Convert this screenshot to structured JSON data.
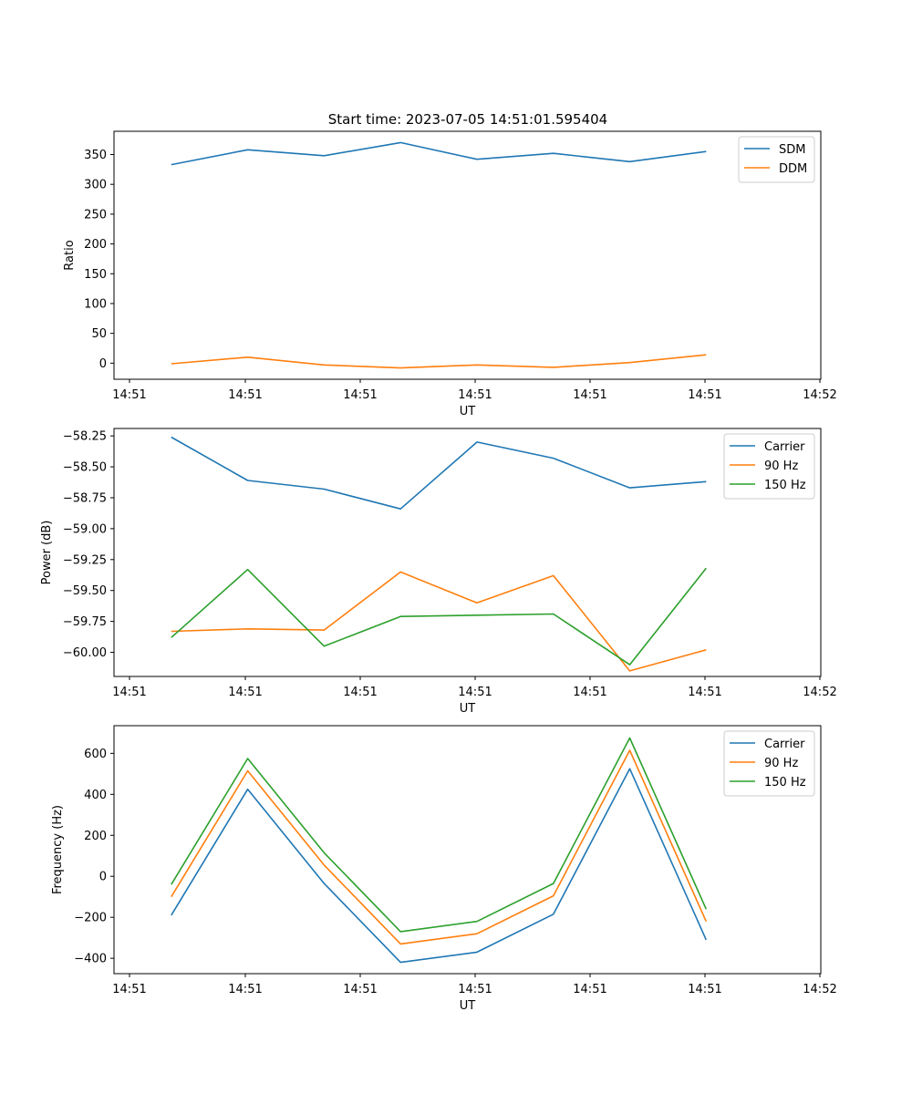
{
  "figure_title": "Start time: 2023-07-05 14:51:01.595404",
  "colors": {
    "c0": "#1f77b4",
    "c1": "#ff7f0e",
    "c2": "#2ca02c"
  },
  "chart_data": [
    {
      "type": "line",
      "xlabel": "UT",
      "ylabel": "Ratio",
      "x_ticks": [
        "14:51",
        "14:51",
        "14:51",
        "14:51",
        "14:51",
        "14:51",
        "14:52"
      ],
      "xlim": [
        -0.75,
        8.5
      ],
      "x": [
        0,
        1,
        2,
        3,
        4,
        5,
        6,
        7
      ],
      "ylim": [
        -27,
        389
      ],
      "y_ticks": [
        0,
        50,
        100,
        150,
        200,
        250,
        300,
        350
      ],
      "legend_loc": "upper right",
      "series": [
        {
          "name": "SDM",
          "color": "#1f77b4",
          "values": [
            333,
            358,
            348,
            370,
            342,
            352,
            338,
            355
          ]
        },
        {
          "name": "DDM",
          "color": "#ff7f0e",
          "values": [
            -1,
            10,
            -3,
            -8,
            -3,
            -7,
            1,
            14
          ]
        }
      ]
    },
    {
      "type": "line",
      "xlabel": "UT",
      "ylabel": "Power (dB)",
      "x_ticks": [
        "14:51",
        "14:51",
        "14:51",
        "14:51",
        "14:51",
        "14:51",
        "14:52"
      ],
      "xlim": [
        -0.75,
        8.5
      ],
      "x": [
        0,
        1,
        2,
        3,
        4,
        5,
        6,
        7
      ],
      "ylim": [
        -60.195,
        -58.19
      ],
      "y_ticks": [
        -58.25,
        -58.5,
        -58.75,
        -59.0,
        -59.25,
        -59.5,
        -59.75,
        -60.0
      ],
      "legend_loc": "upper right",
      "series": [
        {
          "name": "Carrier",
          "color": "#1f77b4",
          "values": [
            -58.26,
            -58.61,
            -58.68,
            -58.84,
            -58.3,
            -58.43,
            -58.67,
            -58.62
          ]
        },
        {
          "name": "90 Hz",
          "color": "#ff7f0e",
          "values": [
            -59.83,
            -59.81,
            -59.82,
            -59.35,
            -59.6,
            -59.38,
            -60.15,
            -59.98
          ]
        },
        {
          "name": "150 Hz",
          "color": "#2ca02c",
          "values": [
            -59.88,
            -59.33,
            -59.95,
            -59.71,
            -59.7,
            -59.69,
            -60.1,
            -59.32
          ]
        }
      ]
    },
    {
      "type": "line",
      "xlabel": "UT",
      "ylabel": "Frequency (Hz)",
      "x_ticks": [
        "14:51",
        "14:51",
        "14:51",
        "14:51",
        "14:51",
        "14:51",
        "14:52"
      ],
      "xlim": [
        -0.75,
        8.5
      ],
      "x": [
        0,
        1,
        2,
        3,
        4,
        5,
        6,
        7
      ],
      "ylim": [
        -475,
        735
      ],
      "y_ticks": [
        -400,
        -200,
        0,
        200,
        400,
        600
      ],
      "legend_loc": "upper right",
      "series": [
        {
          "name": "Carrier",
          "color": "#1f77b4",
          "values": [
            -190,
            425,
            -35,
            -420,
            -370,
            -185,
            525,
            -310
          ]
        },
        {
          "name": "90 Hz",
          "color": "#ff7f0e",
          "values": [
            -100,
            515,
            55,
            -330,
            -280,
            -95,
            615,
            -220
          ]
        },
        {
          "name": "150 Hz",
          "color": "#2ca02c",
          "values": [
            -40,
            575,
            115,
            -270,
            -220,
            -35,
            675,
            -160
          ]
        }
      ]
    }
  ]
}
